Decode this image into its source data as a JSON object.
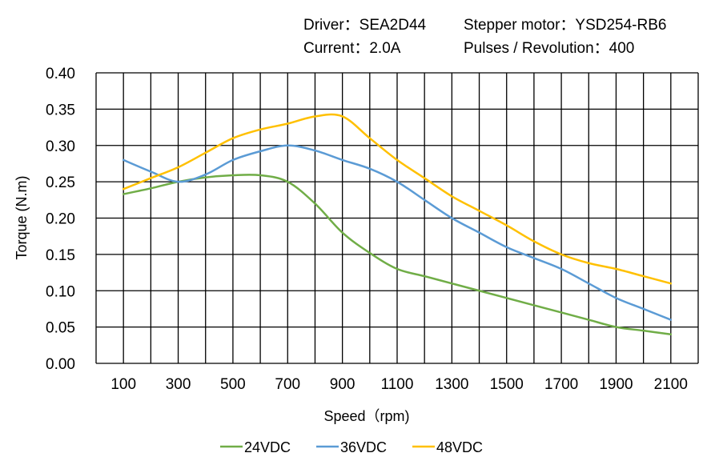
{
  "header": {
    "driver": "Driver：SEA2D44",
    "motor": "Stepper motor：YSD254-RB6",
    "current": "Current：2.0A",
    "pulses": "Pulses / Revolution：400"
  },
  "chart_data": {
    "type": "line",
    "title": "",
    "xlabel": "Speed（rpm)",
    "ylabel": "Torque (N.m)",
    "xlim": [
      0,
      2200
    ],
    "ylim": [
      0,
      0.4
    ],
    "grid": true,
    "legend": "bottom",
    "x_ticks": [
      100,
      300,
      500,
      700,
      900,
      1100,
      1300,
      1500,
      1700,
      1900,
      2100
    ],
    "y_ticks": [
      "0.00",
      "0.05",
      "0.10",
      "0.15",
      "0.20",
      "0.25",
      "0.30",
      "0.35",
      "0.40"
    ],
    "x": [
      100,
      200,
      300,
      400,
      500,
      600,
      700,
      800,
      900,
      1000,
      1100,
      1200,
      1300,
      1400,
      1500,
      1600,
      1700,
      1800,
      1900,
      2000,
      2100
    ],
    "series": [
      {
        "name": "24VDC",
        "color": "#70AD47",
        "values": [
          0.233,
          0.241,
          0.25,
          0.256,
          0.259,
          0.259,
          0.25,
          0.22,
          0.18,
          0.152,
          0.13,
          0.12,
          0.11,
          0.1,
          0.09,
          0.08,
          0.07,
          0.06,
          0.05,
          0.045,
          0.04
        ]
      },
      {
        "name": "36VDC",
        "color": "#5B9BD5",
        "values": [
          0.28,
          0.264,
          0.25,
          0.26,
          0.28,
          0.292,
          0.3,
          0.293,
          0.28,
          0.268,
          0.25,
          0.225,
          0.2,
          0.18,
          0.16,
          0.145,
          0.13,
          0.11,
          0.09,
          0.075,
          0.06
        ]
      },
      {
        "name": "48VDC",
        "color": "#FFC000",
        "values": [
          0.24,
          0.255,
          0.27,
          0.29,
          0.31,
          0.322,
          0.33,
          0.34,
          0.34,
          0.31,
          0.28,
          0.255,
          0.23,
          0.21,
          0.19,
          0.168,
          0.15,
          0.138,
          0.13,
          0.12,
          0.11
        ]
      }
    ]
  }
}
